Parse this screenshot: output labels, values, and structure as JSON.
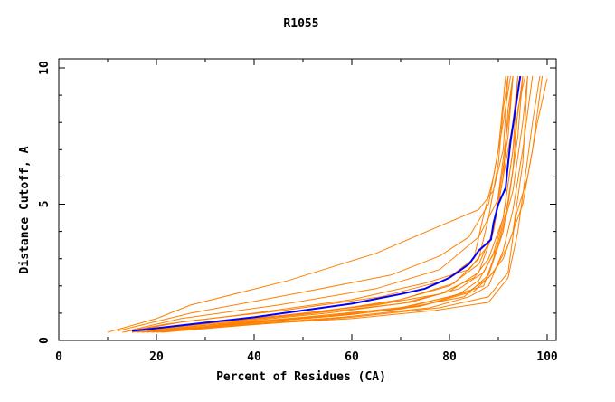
{
  "chart_data": {
    "type": "line",
    "title": "R1055",
    "xlabel": "Percent of Residues (CA)",
    "ylabel": "Distance Cutoff, A",
    "xlim": [
      0,
      100
    ],
    "ylim": [
      0,
      10
    ],
    "x_ticks": [
      "0",
      "20",
      "40",
      "60",
      "80",
      "100"
    ],
    "y_ticks": [
      "0",
      "5",
      "10"
    ],
    "grid": false,
    "colors": {
      "highlight": "#0000ff",
      "others": "#ff8000"
    },
    "highlight_series": [
      [
        15,
        0.35
      ],
      [
        20,
        0.45
      ],
      [
        30,
        0.65
      ],
      [
        40,
        0.85
      ],
      [
        50,
        1.1
      ],
      [
        60,
        1.35
      ],
      [
        70,
        1.7
      ],
      [
        75,
        1.9
      ],
      [
        80,
        2.3
      ],
      [
        84,
        2.8
      ],
      [
        86,
        3.3
      ],
      [
        88.5,
        3.7
      ],
      [
        89,
        4.3
      ],
      [
        90,
        5
      ],
      [
        91.5,
        5.6
      ],
      [
        92,
        6.5
      ],
      [
        92.5,
        7.3
      ],
      [
        93.5,
        8.5
      ],
      [
        94.5,
        9.7
      ]
    ],
    "other_series": [
      [
        [
          10,
          0.3
        ],
        [
          20,
          0.8
        ],
        [
          27,
          1.3
        ],
        [
          47,
          2.2
        ],
        [
          65,
          3.2
        ],
        [
          78,
          4.2
        ],
        [
          86,
          4.8
        ],
        [
          89,
          5.5
        ],
        [
          91,
          7
        ],
        [
          92,
          9.7
        ]
      ],
      [
        [
          12,
          0.35
        ],
        [
          27,
          1
        ],
        [
          48,
          1.7
        ],
        [
          68,
          2.4
        ],
        [
          78,
          3.1
        ],
        [
          84,
          3.8
        ],
        [
          88,
          5
        ],
        [
          90,
          7
        ],
        [
          91.5,
          9.7
        ]
      ],
      [
        [
          14,
          0.35
        ],
        [
          25,
          0.8
        ],
        [
          45,
          1.3
        ],
        [
          65,
          1.9
        ],
        [
          78,
          2.6
        ],
        [
          86,
          3.8
        ],
        [
          90,
          5.2
        ],
        [
          92,
          7.5
        ],
        [
          93,
          9.7
        ]
      ],
      [
        [
          13,
          0.3
        ],
        [
          22,
          0.6
        ],
        [
          40,
          1
        ],
        [
          60,
          1.5
        ],
        [
          75,
          2.1
        ],
        [
          84,
          2.6
        ],
        [
          88,
          3.5
        ],
        [
          90,
          5
        ],
        [
          93,
          8
        ],
        [
          94,
          9.7
        ]
      ],
      [
        [
          15,
          0.3
        ],
        [
          25,
          0.55
        ],
        [
          45,
          0.9
        ],
        [
          65,
          1.3
        ],
        [
          78,
          1.7
        ],
        [
          85,
          2.3
        ],
        [
          88,
          3
        ],
        [
          91,
          4.5
        ],
        [
          93,
          7
        ],
        [
          95,
          9.7
        ]
      ],
      [
        [
          16,
          0.35
        ],
        [
          30,
          0.6
        ],
        [
          50,
          0.95
        ],
        [
          70,
          1.35
        ],
        [
          80,
          1.8
        ],
        [
          86,
          2.5
        ],
        [
          89,
          4
        ],
        [
          91,
          6
        ],
        [
          92,
          8.5
        ],
        [
          93,
          9.7
        ]
      ],
      [
        [
          17,
          0.3
        ],
        [
          30,
          0.55
        ],
        [
          50,
          0.85
        ],
        [
          70,
          1.2
        ],
        [
          80,
          1.6
        ],
        [
          87,
          2
        ],
        [
          89,
          3
        ],
        [
          92,
          5
        ],
        [
          94,
          7.5
        ],
        [
          95,
          9.7
        ]
      ],
      [
        [
          18,
          0.3
        ],
        [
          35,
          0.6
        ],
        [
          55,
          0.9
        ],
        [
          72,
          1.25
        ],
        [
          82,
          1.7
        ],
        [
          86,
          2.2
        ],
        [
          90,
          3.5
        ],
        [
          93,
          5.5
        ],
        [
          95,
          8
        ],
        [
          96,
          9.7
        ]
      ],
      [
        [
          19,
          0.3
        ],
        [
          35,
          0.55
        ],
        [
          58,
          0.85
        ],
        [
          76,
          1.2
        ],
        [
          84,
          1.6
        ],
        [
          88,
          2
        ],
        [
          91,
          3.3
        ],
        [
          93,
          4.8
        ],
        [
          95,
          7
        ],
        [
          97,
          9.7
        ]
      ],
      [
        [
          20,
          0.3
        ],
        [
          40,
          0.6
        ],
        [
          60,
          0.8
        ],
        [
          77,
          1.1
        ],
        [
          88,
          1.4
        ],
        [
          92,
          2.3
        ],
        [
          94,
          4
        ],
        [
          95.5,
          6
        ],
        [
          97,
          8
        ],
        [
          98.5,
          9.7
        ]
      ],
      [
        [
          16,
          0.3
        ],
        [
          30,
          0.5
        ],
        [
          50,
          0.8
        ],
        [
          70,
          1.15
        ],
        [
          83,
          1.6
        ],
        [
          88,
          2.4
        ],
        [
          91,
          4
        ],
        [
          93,
          6.3
        ],
        [
          94,
          8.5
        ],
        [
          95.5,
          9.7
        ]
      ],
      [
        [
          22,
          0.35
        ],
        [
          40,
          0.65
        ],
        [
          60,
          0.95
        ],
        [
          75,
          1.3
        ],
        [
          85,
          1.8
        ],
        [
          89,
          2.5
        ],
        [
          92,
          3.5
        ],
        [
          95,
          5
        ],
        [
          97,
          7
        ],
        [
          99,
          9.7
        ]
      ],
      [
        [
          14,
          0.35
        ],
        [
          28,
          0.6
        ],
        [
          48,
          0.95
        ],
        [
          68,
          1.4
        ],
        [
          80,
          2
        ],
        [
          86,
          2.8
        ],
        [
          89,
          4
        ],
        [
          90.5,
          6
        ],
        [
          92,
          8
        ],
        [
          93,
          9.7
        ]
      ],
      [
        [
          18,
          0.35
        ],
        [
          35,
          0.65
        ],
        [
          55,
          1
        ],
        [
          72,
          1.4
        ],
        [
          82,
          1.9
        ],
        [
          87,
          2.5
        ],
        [
          89,
          3.2
        ],
        [
          91,
          4.5
        ],
        [
          93,
          7
        ],
        [
          94,
          9.7
        ]
      ],
      [
        [
          21,
          0.3
        ],
        [
          38,
          0.55
        ],
        [
          60,
          0.85
        ],
        [
          78,
          1.2
        ],
        [
          88,
          1.6
        ],
        [
          92,
          2.5
        ],
        [
          93.5,
          4.5
        ],
        [
          96,
          6
        ],
        [
          98,
          8
        ],
        [
          100,
          9.6
        ]
      ],
      [
        [
          20,
          0.35
        ],
        [
          36,
          0.6
        ],
        [
          57,
          0.9
        ],
        [
          74,
          1.25
        ],
        [
          84,
          1.8
        ],
        [
          88,
          2.3
        ],
        [
          91,
          3
        ],
        [
          93,
          4
        ],
        [
          95,
          6.5
        ],
        [
          96,
          9.7
        ]
      ],
      [
        [
          17,
          0.35
        ],
        [
          32,
          0.65
        ],
        [
          52,
          1
        ],
        [
          70,
          1.5
        ],
        [
          81,
          2.1
        ],
        [
          86,
          3
        ],
        [
          88,
          4.5
        ],
        [
          90,
          6.5
        ],
        [
          91,
          8.5
        ],
        [
          92,
          9.7
        ]
      ],
      [
        [
          15,
          0.35
        ],
        [
          26,
          0.7
        ],
        [
          46,
          1.1
        ],
        [
          66,
          1.6
        ],
        [
          79,
          2.2
        ],
        [
          85,
          3
        ],
        [
          87,
          4.6
        ],
        [
          89,
          6
        ],
        [
          91,
          8
        ],
        [
          92.5,
          9.7
        ]
      ]
    ]
  }
}
